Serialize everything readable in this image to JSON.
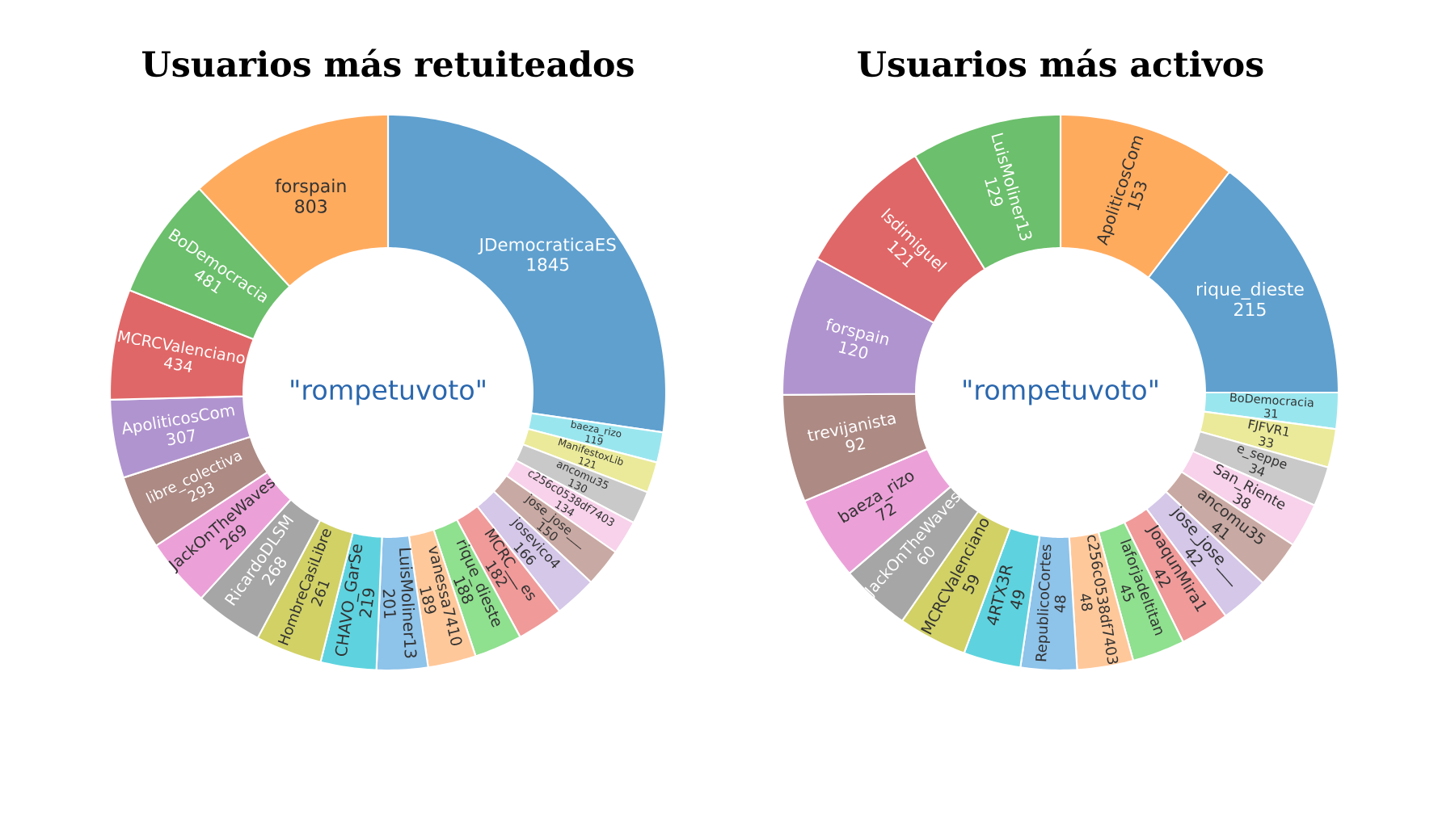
{
  "chart_data": [
    {
      "type": "donut",
      "title": "Usuarios más retuiteados",
      "categories": [
        "JDemocraticaES",
        "baeza_rizo",
        "ManifestoxLib",
        "ancomu35",
        "c256c0538df7403",
        "jose_jose___",
        "josevico4",
        "MCRC___es",
        "rique_dieste",
        "vanessa7410",
        "LuisMoliner13",
        "CHAVO_GarSe",
        "HombreCasiLibre",
        "RicardoDLSM",
        "JackOnTheWaves",
        "libre_colectiva",
        "ApoliticosCom",
        "MCRCValenciano",
        "BoDemocracia",
        "forspain"
      ],
      "values": [
        1845,
        119,
        121,
        130,
        134,
        150,
        166,
        182,
        188,
        189,
        201,
        219,
        261,
        268,
        269,
        293,
        307,
        434,
        481,
        803
      ],
      "colors": [
        "#5fa0cf",
        "#9ae6ef",
        "#eaea9a",
        "#c9c9c9",
        "#f7d2ea",
        "#c9a9a3",
        "#d4c7e8",
        "#f09a9a",
        "#8fe08f",
        "#ffc89a",
        "#8ec3ea",
        "#5ed3df",
        "#d1d166",
        "#a6a6a6",
        "#eba1d8",
        "#ad8a84",
        "#b094cf",
        "#e06767",
        "#6cbf6c",
        "#ffab5e"
      ],
      "data_labels": true,
      "annotations": [
        "\"rompetuvoto\""
      ]
    },
    {
      "type": "donut",
      "title": "Usuarios más activos",
      "categories": [
        "ApoliticosCom",
        "rique_dieste",
        "BoDemocracia",
        "FJFVR1",
        "e_seppe",
        "San_Riente",
        "ancomu35",
        "jose_jose___",
        "JoaqunMira1",
        "laforjadeltitan",
        "c256c0538df7403",
        "RepublicoCortes",
        "4RTX3R",
        "MCRCValenciano",
        "JackOnTheWaves",
        "baeza_rizo",
        "trevijanista",
        "forspain",
        "lsdimiguel",
        "LuisMoliner13"
      ],
      "values": [
        153,
        215,
        31,
        33,
        34,
        38,
        41,
        42,
        42,
        45,
        48,
        48,
        49,
        59,
        60,
        72,
        92,
        120,
        121,
        129
      ],
      "colors": [
        "#ffab5e",
        "#5fa0cf",
        "#9ae6ef",
        "#eaea9a",
        "#c9c9c9",
        "#f7d2ea",
        "#c9a9a3",
        "#d4c7e8",
        "#f09a9a",
        "#8fe08f",
        "#ffc89a",
        "#8ec3ea",
        "#5ed3df",
        "#d1d166",
        "#a6a6a6",
        "#eba1d8",
        "#ad8a84",
        "#b094cf",
        "#e06767",
        "#6cbf6c"
      ],
      "data_labels": true,
      "annotations": [
        "\"rompetuvoto\""
      ]
    }
  ]
}
